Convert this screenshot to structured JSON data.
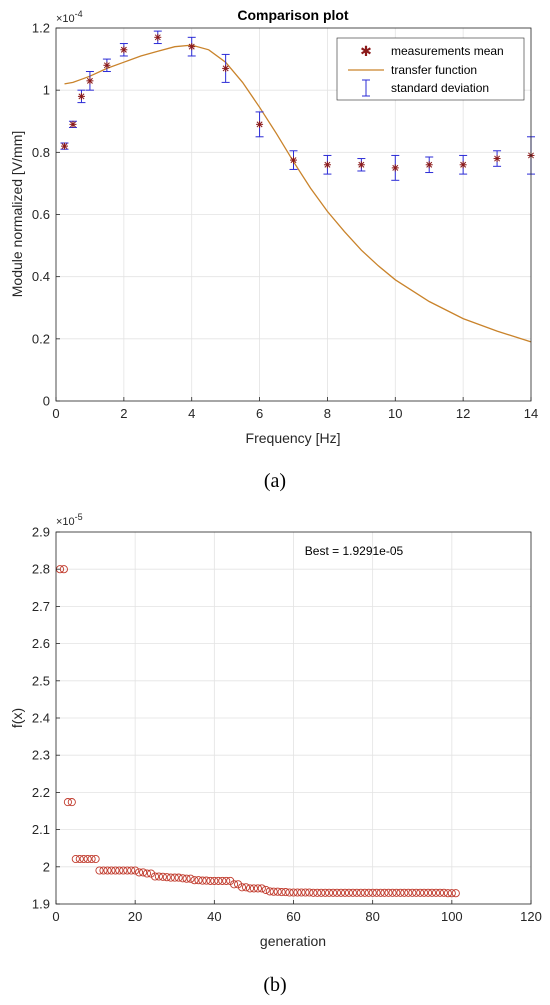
{
  "chart_data": [
    {
      "type": "line",
      "panel_label": "(a)",
      "title": "Comparison plot",
      "xlabel": "Frequency [Hz]",
      "ylabel": "Module normalized [V/mm]",
      "exponent_label": "×10",
      "exponent_power": "-4",
      "xlim": [
        0,
        14
      ],
      "ylim": [
        0,
        1.2
      ],
      "xticks": [
        0,
        2,
        4,
        6,
        8,
        10,
        12,
        14
      ],
      "xtick_labels": [
        "0",
        "2",
        "4",
        "6",
        "8",
        "10",
        "12",
        "14"
      ],
      "yticks": [
        0,
        0.2,
        0.4,
        0.6,
        0.8,
        1,
        1.2
      ],
      "ytick_labels": [
        "0",
        "0.2",
        "0.4",
        "0.6",
        "0.8",
        "1",
        "1.2"
      ],
      "grid": true,
      "legend_position": "top-right",
      "series": [
        {
          "name": "measurements mean",
          "marker": "asterisk",
          "color": "#8b1a1a",
          "x": [
            0.25,
            0.5,
            0.75,
            1,
            1.5,
            2,
            3,
            4,
            5,
            6,
            7,
            8,
            9,
            10,
            11,
            12,
            13,
            14
          ],
          "y": [
            0.82,
            0.89,
            0.98,
            1.03,
            1.08,
            1.13,
            1.17,
            1.14,
            1.07,
            0.89,
            0.775,
            0.76,
            0.76,
            0.75,
            0.76,
            0.76,
            0.78,
            0.79
          ]
        },
        {
          "name": "transfer function",
          "color": "#c9832b",
          "x": [
            0.25,
            0.5,
            0.75,
            1,
            1.5,
            2,
            2.5,
            3,
            3.5,
            4,
            4.5,
            5,
            5.5,
            6,
            6.5,
            7,
            7.5,
            8,
            8.5,
            9,
            9.5,
            10,
            11,
            12,
            13,
            14
          ],
          "y": [
            1.02,
            1.025,
            1.035,
            1.045,
            1.07,
            1.09,
            1.11,
            1.125,
            1.14,
            1.145,
            1.13,
            1.09,
            1.025,
            0.945,
            0.86,
            0.77,
            0.685,
            0.61,
            0.545,
            0.485,
            0.435,
            0.39,
            0.32,
            0.265,
            0.225,
            0.19
          ]
        },
        {
          "name": "standard deviation",
          "marker": "errorbar",
          "color": "#2b2bd6",
          "x": [
            0.25,
            0.5,
            0.75,
            1,
            1.5,
            2,
            3,
            4,
            5,
            6,
            7,
            8,
            9,
            10,
            11,
            12,
            13,
            14
          ],
          "y": [
            0.82,
            0.89,
            0.98,
            1.03,
            1.08,
            1.13,
            1.17,
            1.14,
            1.07,
            0.89,
            0.775,
            0.76,
            0.76,
            0.75,
            0.76,
            0.76,
            0.78,
            0.79
          ],
          "err": [
            0.01,
            0.01,
            0.02,
            0.03,
            0.02,
            0.02,
            0.02,
            0.03,
            0.045,
            0.04,
            0.03,
            0.03,
            0.02,
            0.04,
            0.025,
            0.03,
            0.025,
            0.06
          ]
        }
      ]
    },
    {
      "type": "scatter",
      "panel_label": "(b)",
      "xlabel": "generation",
      "ylabel": "f(x)",
      "exponent_label": "×10",
      "exponent_power": "-5",
      "annotation": "Best = 1.9291e-05",
      "xlim": [
        0,
        120
      ],
      "ylim": [
        1.9,
        2.9
      ],
      "xticks": [
        0,
        20,
        40,
        60,
        80,
        100,
        120
      ],
      "xtick_labels": [
        "0",
        "20",
        "40",
        "60",
        "80",
        "100",
        "120"
      ],
      "yticks": [
        1.9,
        2.0,
        2.1,
        2.2,
        2.3,
        2.4,
        2.5,
        2.6,
        2.7,
        2.8,
        2.9
      ],
      "ytick_labels": [
        "1.9",
        "2",
        "2.1",
        "2.2",
        "2.3",
        "2.4",
        "2.5",
        "2.6",
        "2.7",
        "2.8",
        "2.9"
      ],
      "grid": true,
      "marker": "circle",
      "color": "#c0392b",
      "x": [
        1,
        2,
        3,
        4,
        5,
        6,
        7,
        8,
        9,
        10,
        11,
        12,
        13,
        14,
        15,
        16,
        17,
        18,
        19,
        20,
        21,
        22,
        23,
        24,
        25,
        26,
        27,
        28,
        29,
        30,
        31,
        32,
        33,
        34,
        35,
        36,
        37,
        38,
        39,
        40,
        41,
        42,
        43,
        44,
        45,
        46,
        47,
        48,
        49,
        50,
        51,
        52,
        53,
        54,
        55,
        56,
        57,
        58,
        59,
        60,
        61,
        62,
        63,
        64,
        65,
        66,
        67,
        68,
        69,
        70,
        71,
        72,
        73,
        74,
        75,
        76,
        77,
        78,
        79,
        80,
        81,
        82,
        83,
        84,
        85,
        86,
        87,
        88,
        89,
        90,
        91,
        92,
        93,
        94,
        95,
        96,
        97,
        98,
        99,
        100,
        101
      ],
      "y": [
        2.8,
        2.8,
        2.174,
        2.174,
        2.021,
        2.021,
        2.021,
        2.021,
        2.021,
        2.021,
        1.99,
        1.99,
        1.99,
        1.99,
        1.99,
        1.99,
        1.99,
        1.99,
        1.99,
        1.99,
        1.985,
        1.985,
        1.982,
        1.982,
        1.974,
        1.974,
        1.973,
        1.972,
        1.971,
        1.971,
        1.971,
        1.969,
        1.968,
        1.968,
        1.964,
        1.964,
        1.963,
        1.963,
        1.962,
        1.962,
        1.962,
        1.962,
        1.962,
        1.962,
        1.953,
        1.953,
        1.945,
        1.945,
        1.942,
        1.942,
        1.942,
        1.942,
        1.938,
        1.934,
        1.933,
        1.933,
        1.932,
        1.932,
        1.931,
        1.931,
        1.931,
        1.931,
        1.931,
        1.931,
        1.93,
        1.93,
        1.93,
        1.93,
        1.93,
        1.93,
        1.93,
        1.93,
        1.93,
        1.93,
        1.93,
        1.93,
        1.93,
        1.93,
        1.93,
        1.93,
        1.93,
        1.93,
        1.93,
        1.93,
        1.93,
        1.93,
        1.93,
        1.93,
        1.93,
        1.93,
        1.93,
        1.93,
        1.93,
        1.93,
        1.93,
        1.93,
        1.93,
        1.93,
        1.929,
        1.929,
        1.929
      ]
    }
  ]
}
